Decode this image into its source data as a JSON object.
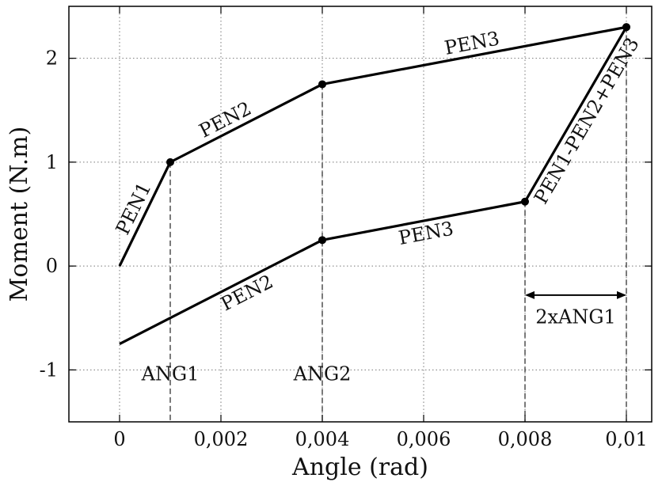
{
  "chart_data": {
    "type": "line",
    "xlabel": "Angle (rad)",
    "ylabel": "Moment (N.m)",
    "xlim": [
      -0.001,
      0.0105
    ],
    "ylim": [
      -1.5,
      2.5
    ],
    "grid": true,
    "x_ticks": [
      {
        "value": 0,
        "label": "0"
      },
      {
        "value": 0.002,
        "label": "0,002"
      },
      {
        "value": 0.004,
        "label": "0,004"
      },
      {
        "value": 0.006,
        "label": "0,006"
      },
      {
        "value": 0.008,
        "label": "0,008"
      },
      {
        "value": 0.01,
        "label": "0,01"
      }
    ],
    "y_ticks": [
      {
        "value": -1,
        "label": "-1"
      },
      {
        "value": 0,
        "label": "0"
      },
      {
        "value": 1,
        "label": "1"
      },
      {
        "value": 2,
        "label": "2"
      }
    ],
    "series": [
      {
        "points": [
          {
            "x": 0,
            "y": 0
          },
          {
            "x": 0.001,
            "y": 1.0
          },
          {
            "x": 0.004,
            "y": 1.75
          },
          {
            "x": 0.01,
            "y": 2.3
          }
        ],
        "marked": [
          false,
          true,
          true,
          true
        ]
      },
      {
        "points": [
          {
            "x": 0,
            "y": -0.75
          },
          {
            "x": 0.004,
            "y": 0.25
          },
          {
            "x": 0.008,
            "y": 0.62
          },
          {
            "x": 0.01,
            "y": 2.3
          }
        ],
        "marked": [
          false,
          true,
          true,
          true
        ]
      }
    ],
    "segment_labels": [
      {
        "text": "PEN1",
        "x1": 0,
        "y1": 0,
        "x2": 0.001,
        "y2": 1.0,
        "pos": 0.5,
        "side": -1
      },
      {
        "text": "PEN2",
        "x1": 0.001,
        "y1": 1.0,
        "x2": 0.004,
        "y2": 1.75,
        "pos": 0.4,
        "side": -1
      },
      {
        "text": "PEN3",
        "x1": 0.004,
        "y1": 1.75,
        "x2": 0.01,
        "y2": 2.3,
        "pos": 0.5,
        "side": -1
      },
      {
        "text": "PEN2",
        "x1": 0,
        "y1": -0.75,
        "x2": 0.004,
        "y2": 0.25,
        "pos": 0.6,
        "side": 1
      },
      {
        "text": "PEN3",
        "x1": 0.004,
        "y1": 0.25,
        "x2": 0.008,
        "y2": 0.62,
        "pos": 0.5,
        "side": 1
      },
      {
        "text": "PEN1-PEN2+PEN3",
        "x1": 0.008,
        "y1": 0.62,
        "x2": 0.01,
        "y2": 2.3,
        "pos": 0.5,
        "side": 1
      }
    ],
    "dashed_verticals": [
      {
        "x": 0.001,
        "y_top": 1.0
      },
      {
        "x": 0.004,
        "y_top": 1.75
      },
      {
        "x": 0.008,
        "y_top": 0.62
      },
      {
        "x": 0.01,
        "y_top": 2.3
      }
    ],
    "annotations": [
      {
        "text": "ANG1",
        "x": 0.001,
        "y": -1.1
      },
      {
        "text": "ANG2",
        "x": 0.004,
        "y": -1.1
      },
      {
        "text": "2xANG1",
        "x": 0.009,
        "y": -0.55
      }
    ],
    "dimension_arrow": {
      "x1": 0.008,
      "x2": 0.01,
      "y": -0.28
    }
  }
}
